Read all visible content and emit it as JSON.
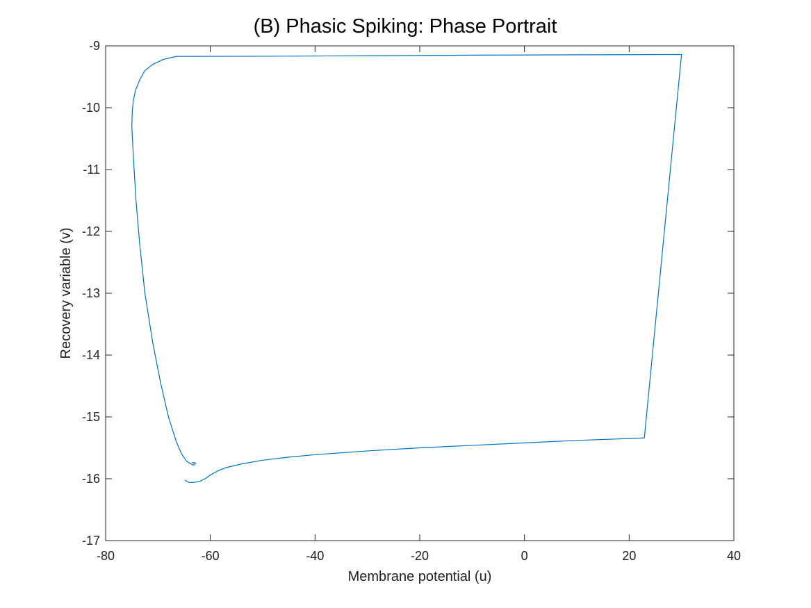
{
  "chart_data": {
    "type": "line",
    "title": "(B) Phasic Spiking: Phase Portrait",
    "xlabel": "Membrane potential (u)",
    "ylabel": "Recovery variable (v)",
    "xlim": [
      -80,
      40
    ],
    "ylim": [
      -17,
      -9
    ],
    "xticks": [
      -80,
      -60,
      -40,
      -20,
      0,
      20,
      40
    ],
    "yticks": [
      -17,
      -16,
      -15,
      -14,
      -13,
      -12,
      -11,
      -10,
      -9
    ],
    "grid": false,
    "line_color": "#0072BD",
    "series": [
      {
        "x": [
          -64.8,
          -64.4,
          -64.0,
          -63.2,
          -62.0,
          -61.0,
          -60.0,
          -58.5,
          -57.0,
          -54.0,
          -50.0,
          -45.0,
          -40.0,
          -30.0,
          -20.0,
          -10.0,
          0.0,
          10.0,
          20.0,
          22.9,
          30.0,
          10.0,
          -10.0,
          -30.0,
          -50.0,
          -66.5,
          -69.0,
          -71.0,
          -72.5,
          -73.5,
          -74.3,
          -74.7,
          -74.9,
          -75.0,
          -74.7,
          -74.2,
          -73.5,
          -72.5,
          -71.0,
          -69.5,
          -68.0,
          -66.5,
          -65.5,
          -64.5,
          -63.7,
          -63.2,
          -63.0,
          -62.8,
          -63.0,
          -63.4,
          -63.2
        ],
        "y": [
          -16.02,
          -16.05,
          -16.06,
          -16.06,
          -16.04,
          -16.0,
          -15.94,
          -15.87,
          -15.82,
          -15.76,
          -15.7,
          -15.65,
          -15.61,
          -15.55,
          -15.5,
          -15.46,
          -15.42,
          -15.38,
          -15.35,
          -15.34,
          -9.14,
          -9.145,
          -9.15,
          -9.16,
          -9.168,
          -9.17,
          -9.22,
          -9.3,
          -9.4,
          -9.55,
          -9.72,
          -9.88,
          -10.05,
          -10.3,
          -10.8,
          -11.5,
          -12.2,
          -13.0,
          -13.8,
          -14.45,
          -15.0,
          -15.4,
          -15.6,
          -15.72,
          -15.76,
          -15.78,
          -15.77,
          -15.75,
          -15.74,
          -15.74,
          -15.75
        ]
      }
    ]
  }
}
